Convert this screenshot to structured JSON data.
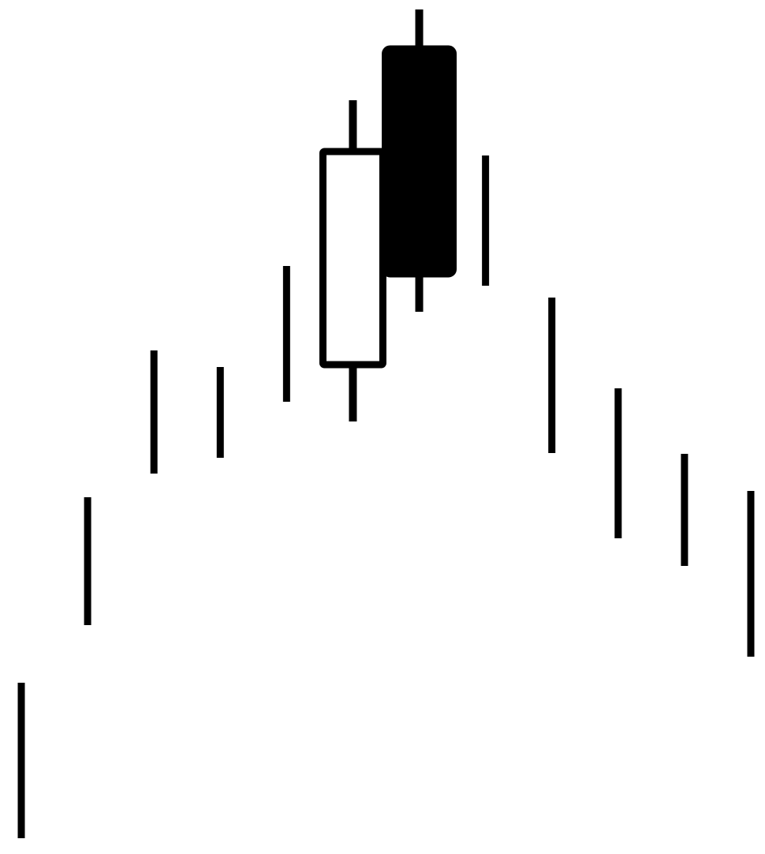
{
  "chart_data": {
    "type": "candlestick",
    "title": "",
    "xlabel": "",
    "ylabel": "",
    "grid": false,
    "legend": "none",
    "ylim": [
      0,
      1082
    ],
    "colors": {
      "stroke": "#000000",
      "bullish_fill": "#ffffff",
      "bearish_fill": "#000000",
      "background": "#ffffff"
    },
    "candles": [
      {
        "index": 1,
        "kind": "line",
        "high": 217,
        "low": 20
      },
      {
        "index": 2,
        "kind": "line",
        "high": 452,
        "low": 290
      },
      {
        "index": 3,
        "kind": "line",
        "high": 638,
        "low": 482
      },
      {
        "index": 4,
        "kind": "line",
        "high": 617,
        "low": 502
      },
      {
        "index": 5,
        "kind": "line",
        "high": 745,
        "low": 573
      },
      {
        "index": 6,
        "kind": "candle",
        "direction": "up",
        "open": 620,
        "close": 890,
        "high": 955,
        "low": 548
      },
      {
        "index": 7,
        "kind": "candle",
        "direction": "down",
        "open": 1020,
        "close": 735,
        "high": 1070,
        "low": 687
      },
      {
        "index": 8,
        "kind": "line",
        "high": 885,
        "low": 720
      },
      {
        "index": 9,
        "kind": "line",
        "high": 705,
        "low": 508
      },
      {
        "index": 10,
        "kind": "line",
        "high": 590,
        "low": 400
      },
      {
        "index": 11,
        "kind": "line",
        "high": 507,
        "low": 365
      },
      {
        "index": 12,
        "kind": "line",
        "high": 460,
        "low": 250
      }
    ]
  }
}
